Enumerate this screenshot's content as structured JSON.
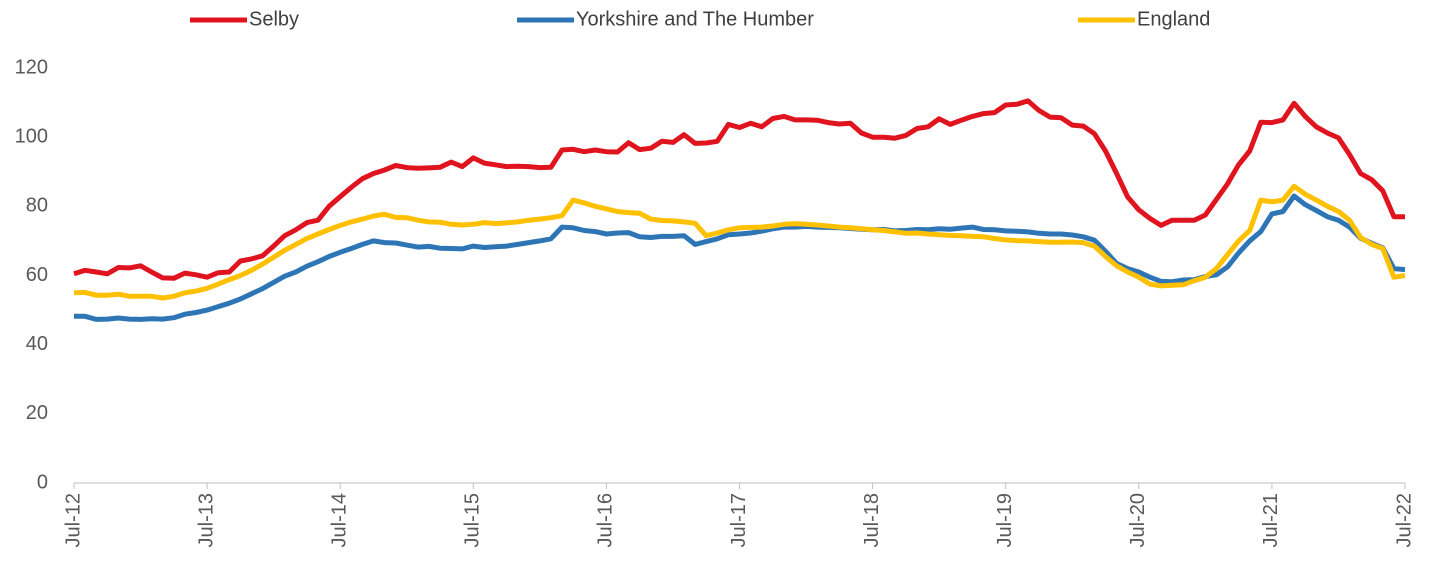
{
  "chart_data": {
    "type": "line",
    "categories": [
      "Jul-12",
      null,
      null,
      null,
      null,
      null,
      null,
      null,
      null,
      null,
      null,
      null,
      "Jul-13",
      null,
      null,
      null,
      null,
      null,
      null,
      null,
      null,
      null,
      null,
      null,
      "Jul-14",
      null,
      null,
      null,
      null,
      null,
      null,
      null,
      null,
      null,
      null,
      null,
      "Jul-15",
      null,
      null,
      null,
      null,
      null,
      null,
      null,
      null,
      null,
      null,
      null,
      "Jul-16",
      null,
      null,
      null,
      null,
      null,
      null,
      null,
      null,
      null,
      null,
      null,
      "Jul-17",
      null,
      null,
      null,
      null,
      null,
      null,
      null,
      null,
      null,
      null,
      null,
      "Jul-18",
      null,
      null,
      null,
      null,
      null,
      null,
      null,
      null,
      null,
      null,
      null,
      "Jul-19",
      null,
      null,
      null,
      null,
      null,
      null,
      null,
      null,
      null,
      null,
      null,
      "Jul-20",
      null,
      null,
      null,
      null,
      null,
      null,
      null,
      null,
      null,
      null,
      null,
      "Jul-21",
      null,
      null,
      null,
      null,
      null,
      null,
      null,
      null,
      null,
      null,
      null,
      "Jul-22"
    ],
    "series": [
      {
        "name": "Selby",
        "color": "#e0141e",
        "values": [
          60.5,
          61.5,
          61,
          60.5,
          62.3,
          62.2,
          62.8,
          61,
          59.3,
          59.2,
          60.7,
          60.2,
          59.5,
          60.8,
          61,
          64.2,
          64.8,
          65.7,
          68.5,
          71.5,
          73.2,
          75.3,
          76,
          80,
          82.8,
          85.5,
          88,
          89.5,
          90.5,
          91.8,
          91.2,
          91,
          91.1,
          91.3,
          92.8,
          91.5,
          94,
          92.5,
          92,
          91.5,
          91.6,
          91.5,
          91.2,
          91.3,
          96.3,
          96.5,
          95.8,
          96.3,
          95.8,
          95.7,
          98.4,
          96.4,
          96.8,
          98.8,
          98.5,
          100.7,
          98.2,
          98.3,
          98.8,
          103.7,
          102.8,
          104,
          103,
          105.4,
          106,
          105,
          105,
          104.9,
          104.2,
          103.8,
          104,
          101.2,
          100,
          100,
          99.7,
          100.5,
          102.5,
          103,
          105.3,
          103.7,
          104.9,
          106,
          106.8,
          107.1,
          109.3,
          109.5,
          110.5,
          107.7,
          105.8,
          105.6,
          103.5,
          103.2,
          101,
          96,
          89.5,
          82.7,
          79,
          76.5,
          74.5,
          76,
          76,
          76,
          77.5,
          82,
          86.5,
          92,
          96,
          104.3,
          104.2,
          105,
          109.8,
          106,
          103,
          101.2,
          99.8,
          95,
          89.5,
          87.7,
          84.5,
          77,
          77
        ]
      },
      {
        "name": "Yorkshire and The Humber",
        "color": "#2e75b6",
        "values": [
          48.2,
          48.2,
          47.3,
          47.4,
          47.7,
          47.4,
          47.3,
          47.5,
          47.4,
          47.8,
          48.8,
          49.3,
          50,
          51,
          52,
          53.2,
          54.7,
          56.2,
          58,
          59.8,
          61,
          62.7,
          64,
          65.5,
          66.7,
          67.8,
          69,
          70,
          69.5,
          69.4,
          68.8,
          68.2,
          68.4,
          67.9,
          67.8,
          67.7,
          68.5,
          68.1,
          68.3,
          68.5,
          69,
          69.5,
          70,
          70.6,
          74,
          73.8,
          73,
          72.7,
          72,
          72.3,
          72.4,
          71.2,
          71,
          71.3,
          71.3,
          71.5,
          69,
          69.8,
          70.6,
          71.8,
          72,
          72.3,
          72.8,
          73.5,
          74,
          74,
          74.2,
          74,
          73.9,
          73.8,
          73.6,
          73.4,
          73.2,
          73.3,
          72.9,
          73,
          73.3,
          73.2,
          73.5,
          73.4,
          73.7,
          74,
          73.3,
          73.2,
          72.9,
          72.8,
          72.6,
          72.2,
          72,
          72,
          71.7,
          71.2,
          70.2,
          67,
          63.5,
          62,
          61,
          59.5,
          58.3,
          58.2,
          58.7,
          58.8,
          59.7,
          60.2,
          62.5,
          66.5,
          70,
          72.7,
          77.8,
          78.5,
          83,
          80.5,
          78.8,
          77,
          76,
          74,
          70.8,
          69.3,
          68,
          62,
          61.7
        ]
      },
      {
        "name": "England",
        "color": "#ffc000",
        "values": [
          55,
          55.1,
          54.3,
          54.3,
          54.6,
          54,
          54,
          54,
          53.5,
          54,
          55,
          55.5,
          56.3,
          57.5,
          58.8,
          60,
          61.5,
          63.3,
          65.3,
          67.3,
          69,
          70.7,
          72,
          73.3,
          74.5,
          75.5,
          76.3,
          77.2,
          77.7,
          76.8,
          76.7,
          76,
          75.5,
          75.4,
          74.8,
          74.6,
          74.8,
          75.3,
          75,
          75.2,
          75.5,
          76,
          76.3,
          76.7,
          77.3,
          81.8,
          81,
          80,
          79.3,
          78.5,
          78.2,
          78,
          76.3,
          75.9,
          75.8,
          75.5,
          75.1,
          71.5,
          72.3,
          73.2,
          73.8,
          73.9,
          74,
          74.3,
          74.8,
          75,
          74.8,
          74.6,
          74.3,
          74,
          73.8,
          73.5,
          73.2,
          73,
          72.6,
          72.2,
          72.3,
          72,
          71.8,
          71.6,
          71.5,
          71.3,
          71.2,
          70.7,
          70.3,
          70.1,
          70,
          69.8,
          69.6,
          69.6,
          69.7,
          69.5,
          68.5,
          65.5,
          62.8,
          61,
          59.5,
          57.5,
          57,
          57.2,
          57.3,
          58.5,
          59.5,
          62,
          66,
          70,
          73,
          81.8,
          81.3,
          81.8,
          85.8,
          83.5,
          81.8,
          80,
          78.5,
          76,
          71,
          69,
          67.8,
          59.5,
          60
        ]
      }
    ],
    "ylim": [
      0,
      120
    ],
    "yticks": [
      0,
      20,
      40,
      60,
      80,
      100,
      120
    ],
    "grid": false,
    "legend": "top"
  }
}
